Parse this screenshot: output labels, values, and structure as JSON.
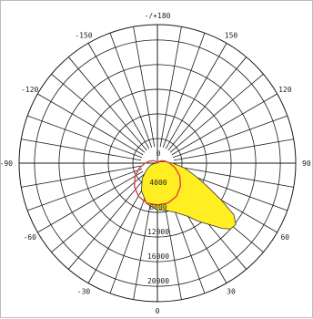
{
  "chart_data": {
    "type": "polar",
    "angle_labels": [
      {
        "angle": 180,
        "text": "-/+180"
      },
      {
        "angle": 150,
        "text": "150"
      },
      {
        "angle": 120,
        "text": "120"
      },
      {
        "angle": 90,
        "text": "90"
      },
      {
        "angle": 60,
        "text": "60"
      },
      {
        "angle": 30,
        "text": "30"
      },
      {
        "angle": 0,
        "text": "0"
      },
      {
        "angle": -30,
        "text": "-30"
      },
      {
        "angle": -60,
        "text": "-60"
      },
      {
        "angle": -90,
        "text": "-90"
      },
      {
        "angle": -120,
        "text": "-120"
      },
      {
        "angle": -150,
        "text": "-150"
      }
    ],
    "radial_labels": [
      "0",
      "4000",
      "8000",
      "12000",
      "16000",
      "20000"
    ],
    "radial_ticks": [
      0,
      4000,
      8000,
      12000,
      16000,
      20000
    ],
    "r_max": 22500,
    "angle_step_degrees": 10,
    "grid": true,
    "series": [
      {
        "color": "#ffee22",
        "stroke": "#333333",
        "fill": true,
        "points": [
          {
            "angle": 0,
            "r": 7600
          },
          {
            "angle": 10,
            "r": 7800
          },
          {
            "angle": 20,
            "r": 8500
          },
          {
            "angle": 30,
            "r": 10000
          },
          {
            "angle": 35,
            "r": 11500
          },
          {
            "angle": 40,
            "r": 13000
          },
          {
            "angle": 45,
            "r": 15000
          },
          {
            "angle": 48,
            "r": 16000
          },
          {
            "angle": 52,
            "r": 16200
          },
          {
            "angle": 56,
            "r": 15000
          },
          {
            "angle": 60,
            "r": 12000
          },
          {
            "angle": 65,
            "r": 9000
          },
          {
            "angle": 70,
            "r": 7000
          },
          {
            "angle": 80,
            "r": 4500
          },
          {
            "angle": 90,
            "r": 2500
          },
          {
            "angle": 100,
            "r": 1300
          },
          {
            "angle": 110,
            "r": 700
          },
          {
            "angle": 120,
            "r": 350
          },
          {
            "angle": 150,
            "r": 100
          },
          {
            "angle": 180,
            "r": 0
          },
          {
            "angle": -150,
            "r": 0
          },
          {
            "angle": -120,
            "r": 0
          },
          {
            "angle": -100,
            "r": 0
          },
          {
            "angle": -90,
            "r": 300
          },
          {
            "angle": -75,
            "r": 1100
          },
          {
            "angle": -60,
            "r": 2000
          },
          {
            "angle": -45,
            "r": 3500
          },
          {
            "angle": -30,
            "r": 5200
          },
          {
            "angle": -15,
            "r": 6800
          }
        ]
      },
      {
        "color": "#dd4444",
        "fill": false,
        "points": [
          {
            "angle": 0,
            "r": 6800
          },
          {
            "angle": 15,
            "r": 6700
          },
          {
            "angle": 30,
            "r": 6200
          },
          {
            "angle": 45,
            "r": 5300
          },
          {
            "angle": 60,
            "r": 4200
          },
          {
            "angle": 75,
            "r": 3000
          },
          {
            "angle": 90,
            "r": 2000
          },
          {
            "angle": 105,
            "r": 1300
          },
          {
            "angle": 120,
            "r": 800
          },
          {
            "angle": 135,
            "r": 400
          },
          {
            "angle": 150,
            "r": 100
          },
          {
            "angle": 165,
            "r": 0
          },
          {
            "angle": 180,
            "r": 0
          },
          {
            "angle": -165,
            "r": 0
          },
          {
            "angle": -150,
            "r": 100
          },
          {
            "angle": -135,
            "r": 400
          },
          {
            "angle": -120,
            "r": 800
          },
          {
            "angle": -105,
            "r": 1300
          },
          {
            "angle": -90,
            "r": 2000
          },
          {
            "angle": -75,
            "r": 3000
          },
          {
            "angle": -60,
            "r": 4200
          },
          {
            "angle": -45,
            "r": 5300
          },
          {
            "angle": -30,
            "r": 6200
          },
          {
            "angle": -15,
            "r": 6700
          }
        ]
      }
    ]
  }
}
